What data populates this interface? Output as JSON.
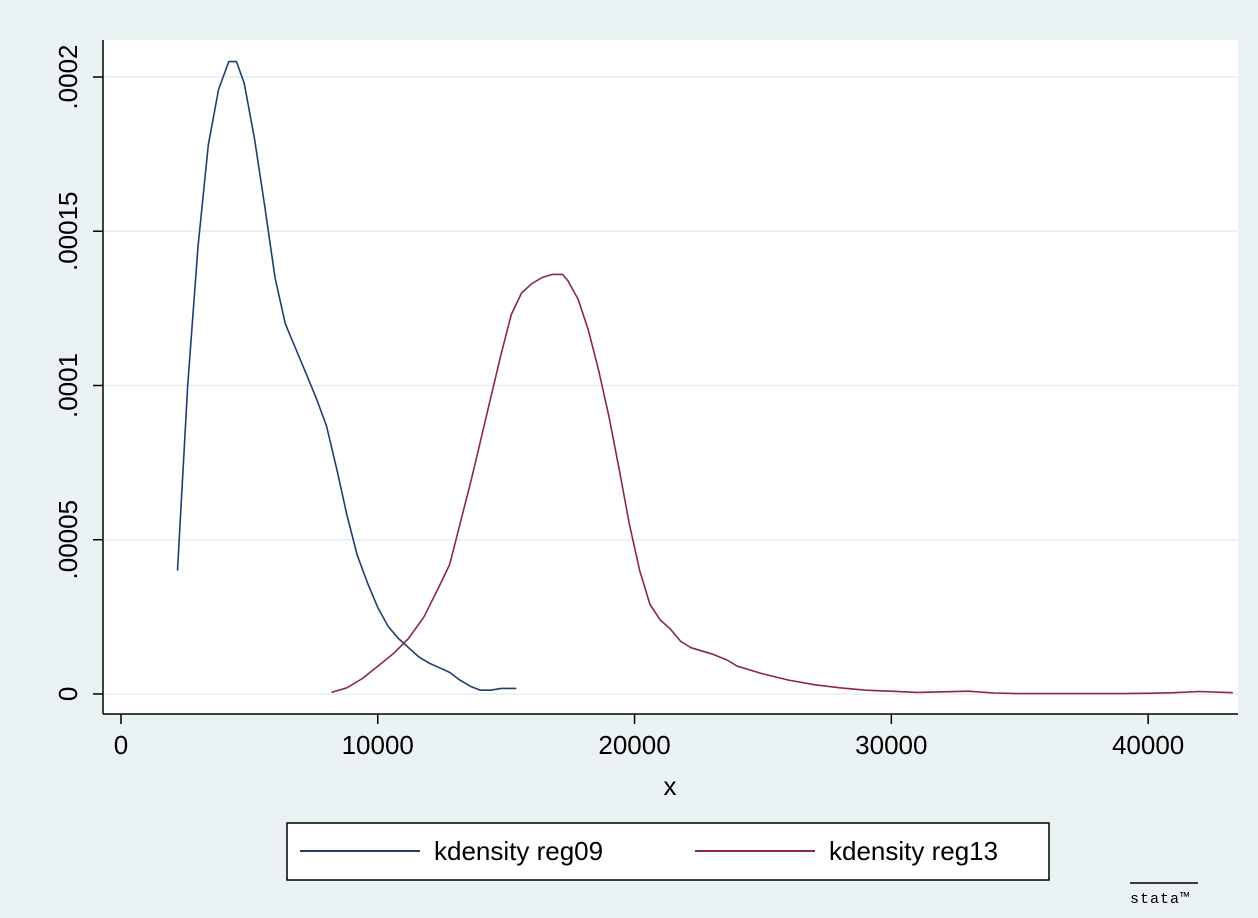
{
  "chart_data": {
    "type": "line",
    "title": "",
    "xlabel": "x",
    "ylabel": "",
    "xlim": [
      -700,
      43500
    ],
    "ylim": [
      -6.5e-06,
      0.000212
    ],
    "xticks": [
      0,
      10000,
      20000,
      30000,
      40000
    ],
    "xtick_labels": [
      "0",
      "10000",
      "20000",
      "30000",
      "40000"
    ],
    "yticks": [
      0,
      5e-05,
      0.0001,
      0.00015,
      0.0002
    ],
    "ytick_labels": [
      "0",
      ".00005",
      ".0001",
      ".00015",
      ".0002"
    ],
    "grid": "horizontal",
    "legend_position": "bottom",
    "series": [
      {
        "name": "kdensity reg09",
        "color": "#1f3e6e",
        "x": [
          2200,
          2600,
          3000,
          3400,
          3800,
          4200,
          4500,
          4800,
          5200,
          5600,
          6000,
          6400,
          6800,
          7200,
          7600,
          8000,
          8400,
          8800,
          9200,
          9600,
          10000,
          10400,
          10800,
          11200,
          11600,
          12000,
          12400,
          12800,
          13200,
          13600,
          14000,
          14400,
          14800,
          15400
        ],
        "y": [
          4e-05,
          0.0001,
          0.000145,
          0.000178,
          0.000196,
          0.000205,
          0.000205,
          0.000198,
          0.00018,
          0.000158,
          0.000135,
          0.00012,
          0.000112,
          0.000104,
          9.6e-05,
          8.7e-05,
          7.3e-05,
          5.8e-05,
          4.5e-05,
          3.6e-05,
          2.8e-05,
          2.2e-05,
          1.8e-05,
          1.5e-05,
          1.2e-05,
          1e-05,
          8.5e-06,
          7e-06,
          4.5e-06,
          2.5e-06,
          1.2e-06,
          1.2e-06,
          1.8e-06,
          1.8e-06
        ]
      },
      {
        "name": "kdensity reg13",
        "color": "#8b2a3a",
        "x": [
          8200,
          8800,
          9400,
          10000,
          10600,
          11200,
          11800,
          12400,
          12800,
          13200,
          13600,
          14000,
          14400,
          14800,
          15200,
          15600,
          16000,
          16400,
          16800,
          17200,
          17400,
          17800,
          18200,
          18600,
          19000,
          19400,
          19800,
          20200,
          20600,
          21000,
          21400,
          21800,
          22200,
          22600,
          23000,
          23600,
          24000,
          25000,
          26000,
          27000,
          28000,
          29000,
          30000,
          31000,
          32000,
          33000,
          34000,
          35000,
          36000,
          37000,
          38000,
          39000,
          40000,
          41000,
          42000,
          43300
        ],
        "y": [
          5e-07,
          2e-06,
          5e-06,
          9e-06,
          1.3e-05,
          1.8e-05,
          2.5e-05,
          3.5e-05,
          4.2e-05,
          5.5e-05,
          6.8e-05,
          8.2e-05,
          9.6e-05,
          0.00011,
          0.000123,
          0.00013,
          0.000133,
          0.000135,
          0.000136,
          0.000136,
          0.000134,
          0.000128,
          0.000118,
          0.000105,
          9e-05,
          7.3e-05,
          5.5e-05,
          4e-05,
          2.9e-05,
          2.4e-05,
          2.1e-05,
          1.7e-05,
          1.5e-05,
          1.4e-05,
          1.3e-05,
          1.1e-05,
          9e-06,
          6.5e-06,
          4.5e-06,
          3e-06,
          2e-06,
          1.2e-06,
          9e-07,
          5e-07,
          7e-07,
          9e-07,
          3e-07,
          1e-07,
          1e-07,
          1e-07,
          1e-07,
          1e-07,
          2e-07,
          4e-07,
          8e-07,
          4e-07
        ]
      }
    ]
  },
  "logo": "stata™"
}
